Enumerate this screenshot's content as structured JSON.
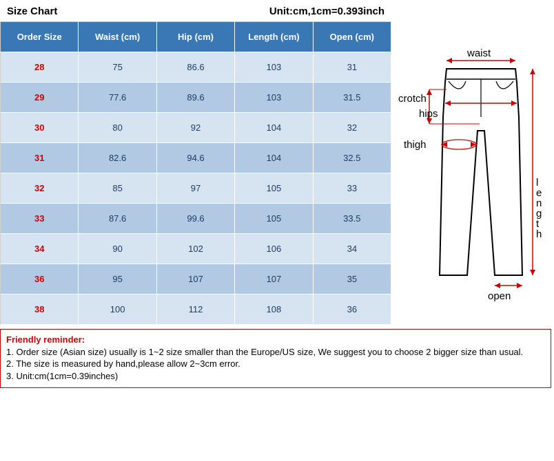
{
  "title": "Size Chart",
  "unit_note": "Unit:cm,1cm=0.393inch",
  "columns": [
    "Order Size",
    "Waist (cm)",
    "Hip (cm)",
    "Length (cm)",
    "Open (cm)"
  ],
  "rows": [
    [
      "28",
      "75",
      "86.6",
      "103",
      "31"
    ],
    [
      "29",
      "77.6",
      "89.6",
      "103",
      "31.5"
    ],
    [
      "30",
      "80",
      "92",
      "104",
      "32"
    ],
    [
      "31",
      "82.6",
      "94.6",
      "104",
      "32.5"
    ],
    [
      "32",
      "85",
      "97",
      "105",
      "33"
    ],
    [
      "33",
      "87.6",
      "99.6",
      "105",
      "33.5"
    ],
    [
      "34",
      "90",
      "102",
      "106",
      "34"
    ],
    [
      "36",
      "95",
      "107",
      "107",
      "35"
    ],
    [
      "38",
      "100",
      "112",
      "108",
      "36"
    ]
  ],
  "colors": {
    "header_bg": "#3a77b5",
    "header_text": "#ffffff",
    "row_odd_bg": "#d6e3f0",
    "row_even_bg": "#b1c9e2",
    "size_text": "#d40000",
    "value_text": "#1a3d66",
    "reminder_border": "#c00000",
    "reminder_title": "#d40000"
  },
  "diagram_labels": {
    "waist": "waist",
    "crotch": "crotch",
    "hips": "hips",
    "thigh": "thigh",
    "length": "length",
    "open": "open"
  },
  "reminder": {
    "title": "Friendly reminder:",
    "lines": [
      "1. Order size (Asian size) usually is 1~2 size smaller than the Europe/US size, We suggest you to choose 2 bigger size than usual.",
      "2. The size is measured by hand,please allow 2~3cm error.",
      "3. Unit:cm(1cm=0.39inches)"
    ]
  }
}
